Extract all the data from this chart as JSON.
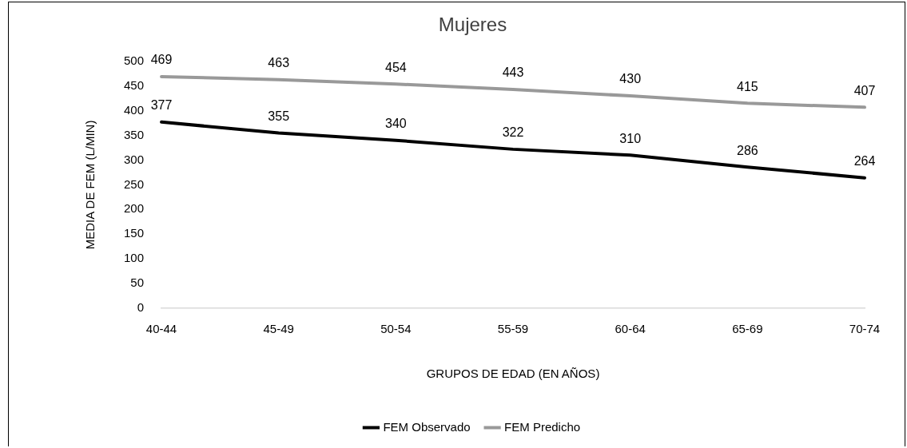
{
  "chart_data": {
    "type": "line",
    "title": "Mujeres",
    "xlabel": "GRUPOS DE EDAD (EN AÑOS)",
    "ylabel": "MEDIA DE FEM (L/MIN)",
    "categories": [
      "40-44",
      "45-49",
      "50-54",
      "55-59",
      "60-64",
      "65-69",
      "70-74"
    ],
    "series": [
      {
        "name": "FEM Observado",
        "color": "#000000",
        "values": [
          377,
          355,
          340,
          322,
          310,
          286,
          264
        ]
      },
      {
        "name": "FEM Predicho",
        "color": "#999999",
        "values": [
          469,
          463,
          454,
          443,
          430,
          415,
          407
        ]
      }
    ],
    "ylim": [
      0,
      500
    ],
    "yticks": [
      0,
      50,
      100,
      150,
      200,
      250,
      300,
      350,
      400,
      450,
      500
    ],
    "legend": "bottom",
    "data_labels": true,
    "marker": "none"
  }
}
